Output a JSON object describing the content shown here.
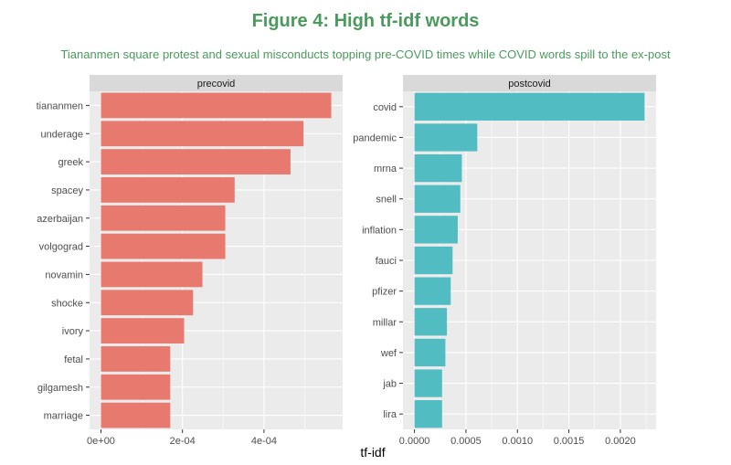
{
  "title": "Figure 4: High tf-idf words",
  "subtitle": "Tiananmen square protest and sexual misconducts topping pre-COVID times while COVID words spill to the ex-post",
  "chart_data": {
    "type": "bar",
    "orientation": "horizontal",
    "xlabel": "tf-idf",
    "ylabel": "",
    "grid": true,
    "colors": {
      "precovid": "#e8796e",
      "postcovid": "#52bcc3"
    },
    "panels": [
      {
        "name": "precovid",
        "categories": [
          "tiananmen",
          "underage",
          "greek",
          "spacey",
          "azerbaijan",
          "volgograd",
          "novamin",
          "shocke",
          "ivory",
          "fetal",
          "gilgamesh",
          "marriage"
        ],
        "values": [
          0.000565,
          0.000497,
          0.000465,
          0.000328,
          0.000305,
          0.000305,
          0.000249,
          0.000226,
          0.000204,
          0.00017,
          0.00017,
          0.00017
        ],
        "xlim": [
          -2.8e-05,
          0.000593
        ],
        "xticks": [
          0,
          0.0002,
          0.0004
        ],
        "xtick_labels": [
          "0e+00",
          "2e-04",
          "4e-04"
        ]
      },
      {
        "name": "postcovid",
        "categories": [
          "covid",
          "pandemic",
          "mrna",
          "snell",
          "inflation",
          "fauci",
          "pfizer",
          "millar",
          "wef",
          "jab",
          "lira"
        ],
        "values": [
          0.002235,
          0.00061,
          0.00046,
          0.000445,
          0.00042,
          0.00037,
          0.000352,
          0.000315,
          0.0003,
          0.000268,
          0.000268
        ],
        "xlim": [
          -0.000112,
          0.002347
        ],
        "xticks": [
          0,
          0.0005,
          0.001,
          0.0015,
          0.002
        ],
        "xtick_labels": [
          "0.0000",
          "0.0005",
          "0.0010",
          "0.0015",
          "0.0020"
        ]
      }
    ]
  }
}
